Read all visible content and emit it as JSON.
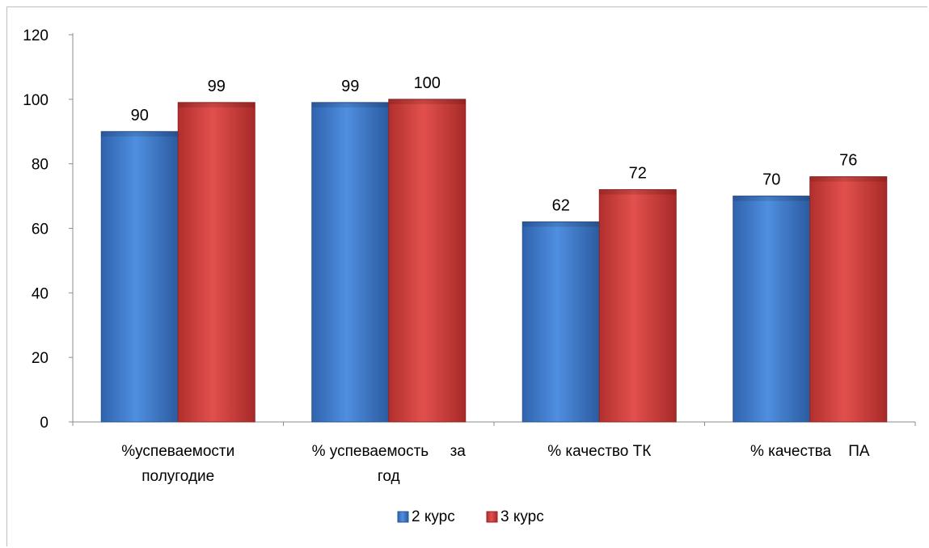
{
  "chart_data": {
    "type": "bar",
    "categories": [
      [
        "%успеваемости",
        "полугодие"
      ],
      [
        "% успеваемость     за",
        "год"
      ],
      [
        "% качество ТК"
      ],
      [
        "% качества    ПА"
      ]
    ],
    "series": [
      {
        "name": "2 курс",
        "values": [
          90,
          99,
          62,
          70
        ],
        "color": "#3f7fd0"
      },
      {
        "name": "3 курс",
        "values": [
          99,
          100,
          72,
          76
        ],
        "color": "#d23c3a"
      }
    ],
    "ylim": [
      0,
      120
    ],
    "yticks": [
      "0",
      "20",
      "40",
      "60",
      "80",
      "100",
      "120"
    ],
    "legend_position": "bottom"
  }
}
